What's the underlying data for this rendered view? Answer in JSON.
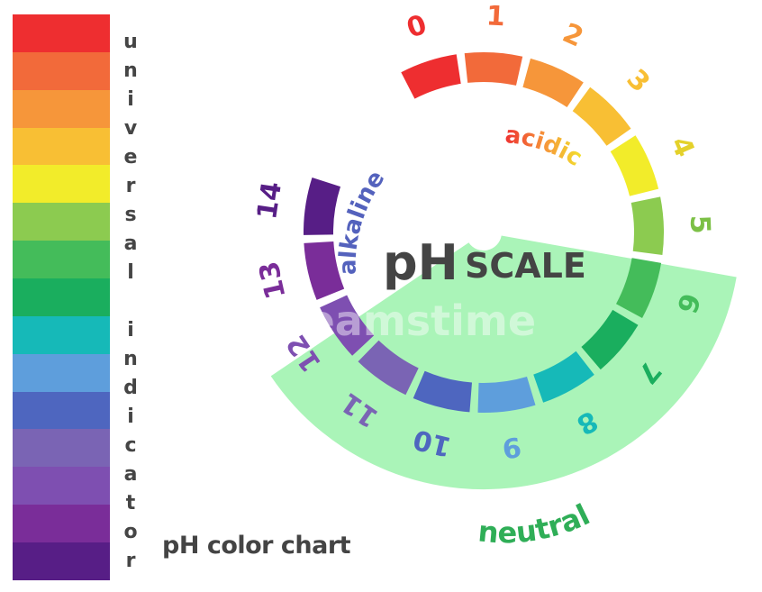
{
  "scale_colors": [
    "#ee2e30",
    "#f26a3a",
    "#f6963a",
    "#f8bf34",
    "#f2ec2a",
    "#8ccb50",
    "#44bc5a",
    "#1aae5e",
    "#16b9b8",
    "#5e9edc",
    "#4e66bf",
    "#7a64b4",
    "#7e4fb1",
    "#7a2d99",
    "#571e86"
  ],
  "vertical_title_letters": [
    "u",
    "n",
    "i",
    "v",
    "e",
    "r",
    "s",
    "a",
    "l",
    " ",
    "i",
    "n",
    "d",
    "i",
    "c",
    "a",
    "t",
    "o",
    "r"
  ],
  "chart_label": "pH color chart",
  "wheel": {
    "numbers": [
      "0",
      "1",
      "2",
      "3",
      "4",
      "5",
      "6",
      "7",
      "8",
      "9",
      "10",
      "11",
      "12",
      "13",
      "14"
    ],
    "number_colors": [
      "#ee2e30",
      "#f26a3a",
      "#f6963a",
      "#f8bf34",
      "#e4d12a",
      "#7cc046",
      "#44bc5a",
      "#1aae5e",
      "#16b9b8",
      "#5e9edc",
      "#4e66bf",
      "#7a64b4",
      "#7e4fb1",
      "#7a2d99",
      "#571e86"
    ],
    "title_ph": "pH",
    "title_scale": "SCALE",
    "acidic_label": "acidic",
    "alkaline_label": "alkaline",
    "neutral_label": "neutral",
    "watermark": "dreamstime",
    "neutral_band_color": "#a5f3b4",
    "acidic_gradient": [
      "#ee2e30",
      "#f6963a",
      "#f2ec2a"
    ],
    "alkaline_color": "#5462bd",
    "neutral_text_color": "#2fae57"
  }
}
